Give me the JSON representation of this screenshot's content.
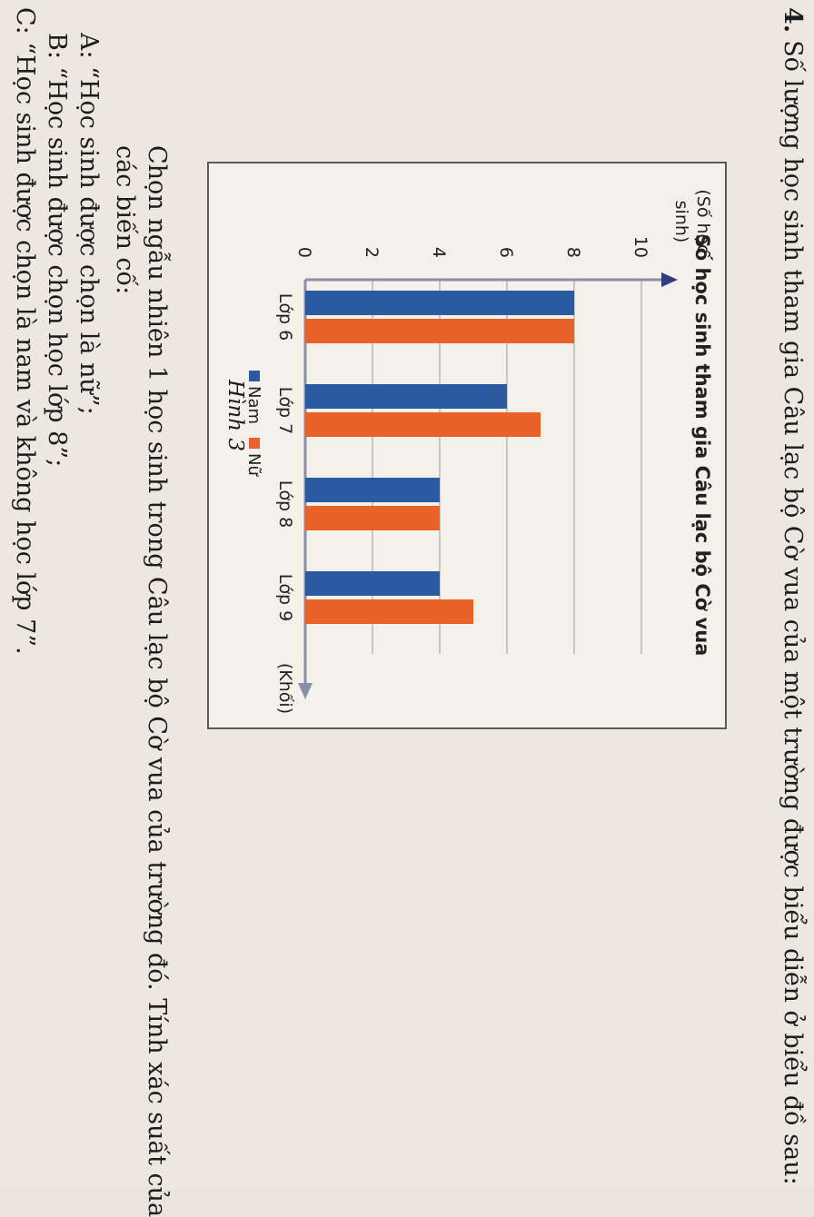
{
  "problem": {
    "number": "4.",
    "statement": "Số lượng học sinh tham gia Câu lạc bộ Cờ vua của một trường được biểu diễn ở biểu đồ sau:"
  },
  "task": {
    "line1": "Chọn ngẫu nhiên 1 học sinh trong Câu lạc bộ Cờ vua của trường đó. Tính xác suất của",
    "line2": "các biến cố:"
  },
  "events": {
    "a": "A: “Học sinh được chọn là nữ”;",
    "b": "B: “Học sinh được chọn học lớp 8”;",
    "c": "C: “Học sinh được chọn là nam và không học lớp 7”."
  },
  "figure": {
    "caption": "Hình 3"
  },
  "colors": {
    "nam": "#2c5aa0",
    "nu": "#e8622a",
    "grid": "#9a9a9a",
    "axis": "#8a8fa8"
  },
  "chart_data": {
    "type": "bar",
    "title": "Số học sinh tham gia Câu lạc bộ Cờ vua",
    "ylabel_line1": "(Số học",
    "ylabel_line2": "sinh)",
    "xlabel": "(Khối)",
    "categories": [
      "Lớp 6",
      "Lớp 7",
      "Lớp 8",
      "Lớp 9"
    ],
    "series": [
      {
        "name": "Nam",
        "values": [
          8,
          6,
          4,
          4
        ]
      },
      {
        "name": "Nữ",
        "values": [
          8,
          7,
          4,
          5
        ]
      }
    ],
    "yticks": [
      "0",
      "2",
      "4",
      "6",
      "8",
      "10"
    ],
    "ylim": [
      0,
      10
    ],
    "grid": true,
    "legend": "bottom"
  }
}
